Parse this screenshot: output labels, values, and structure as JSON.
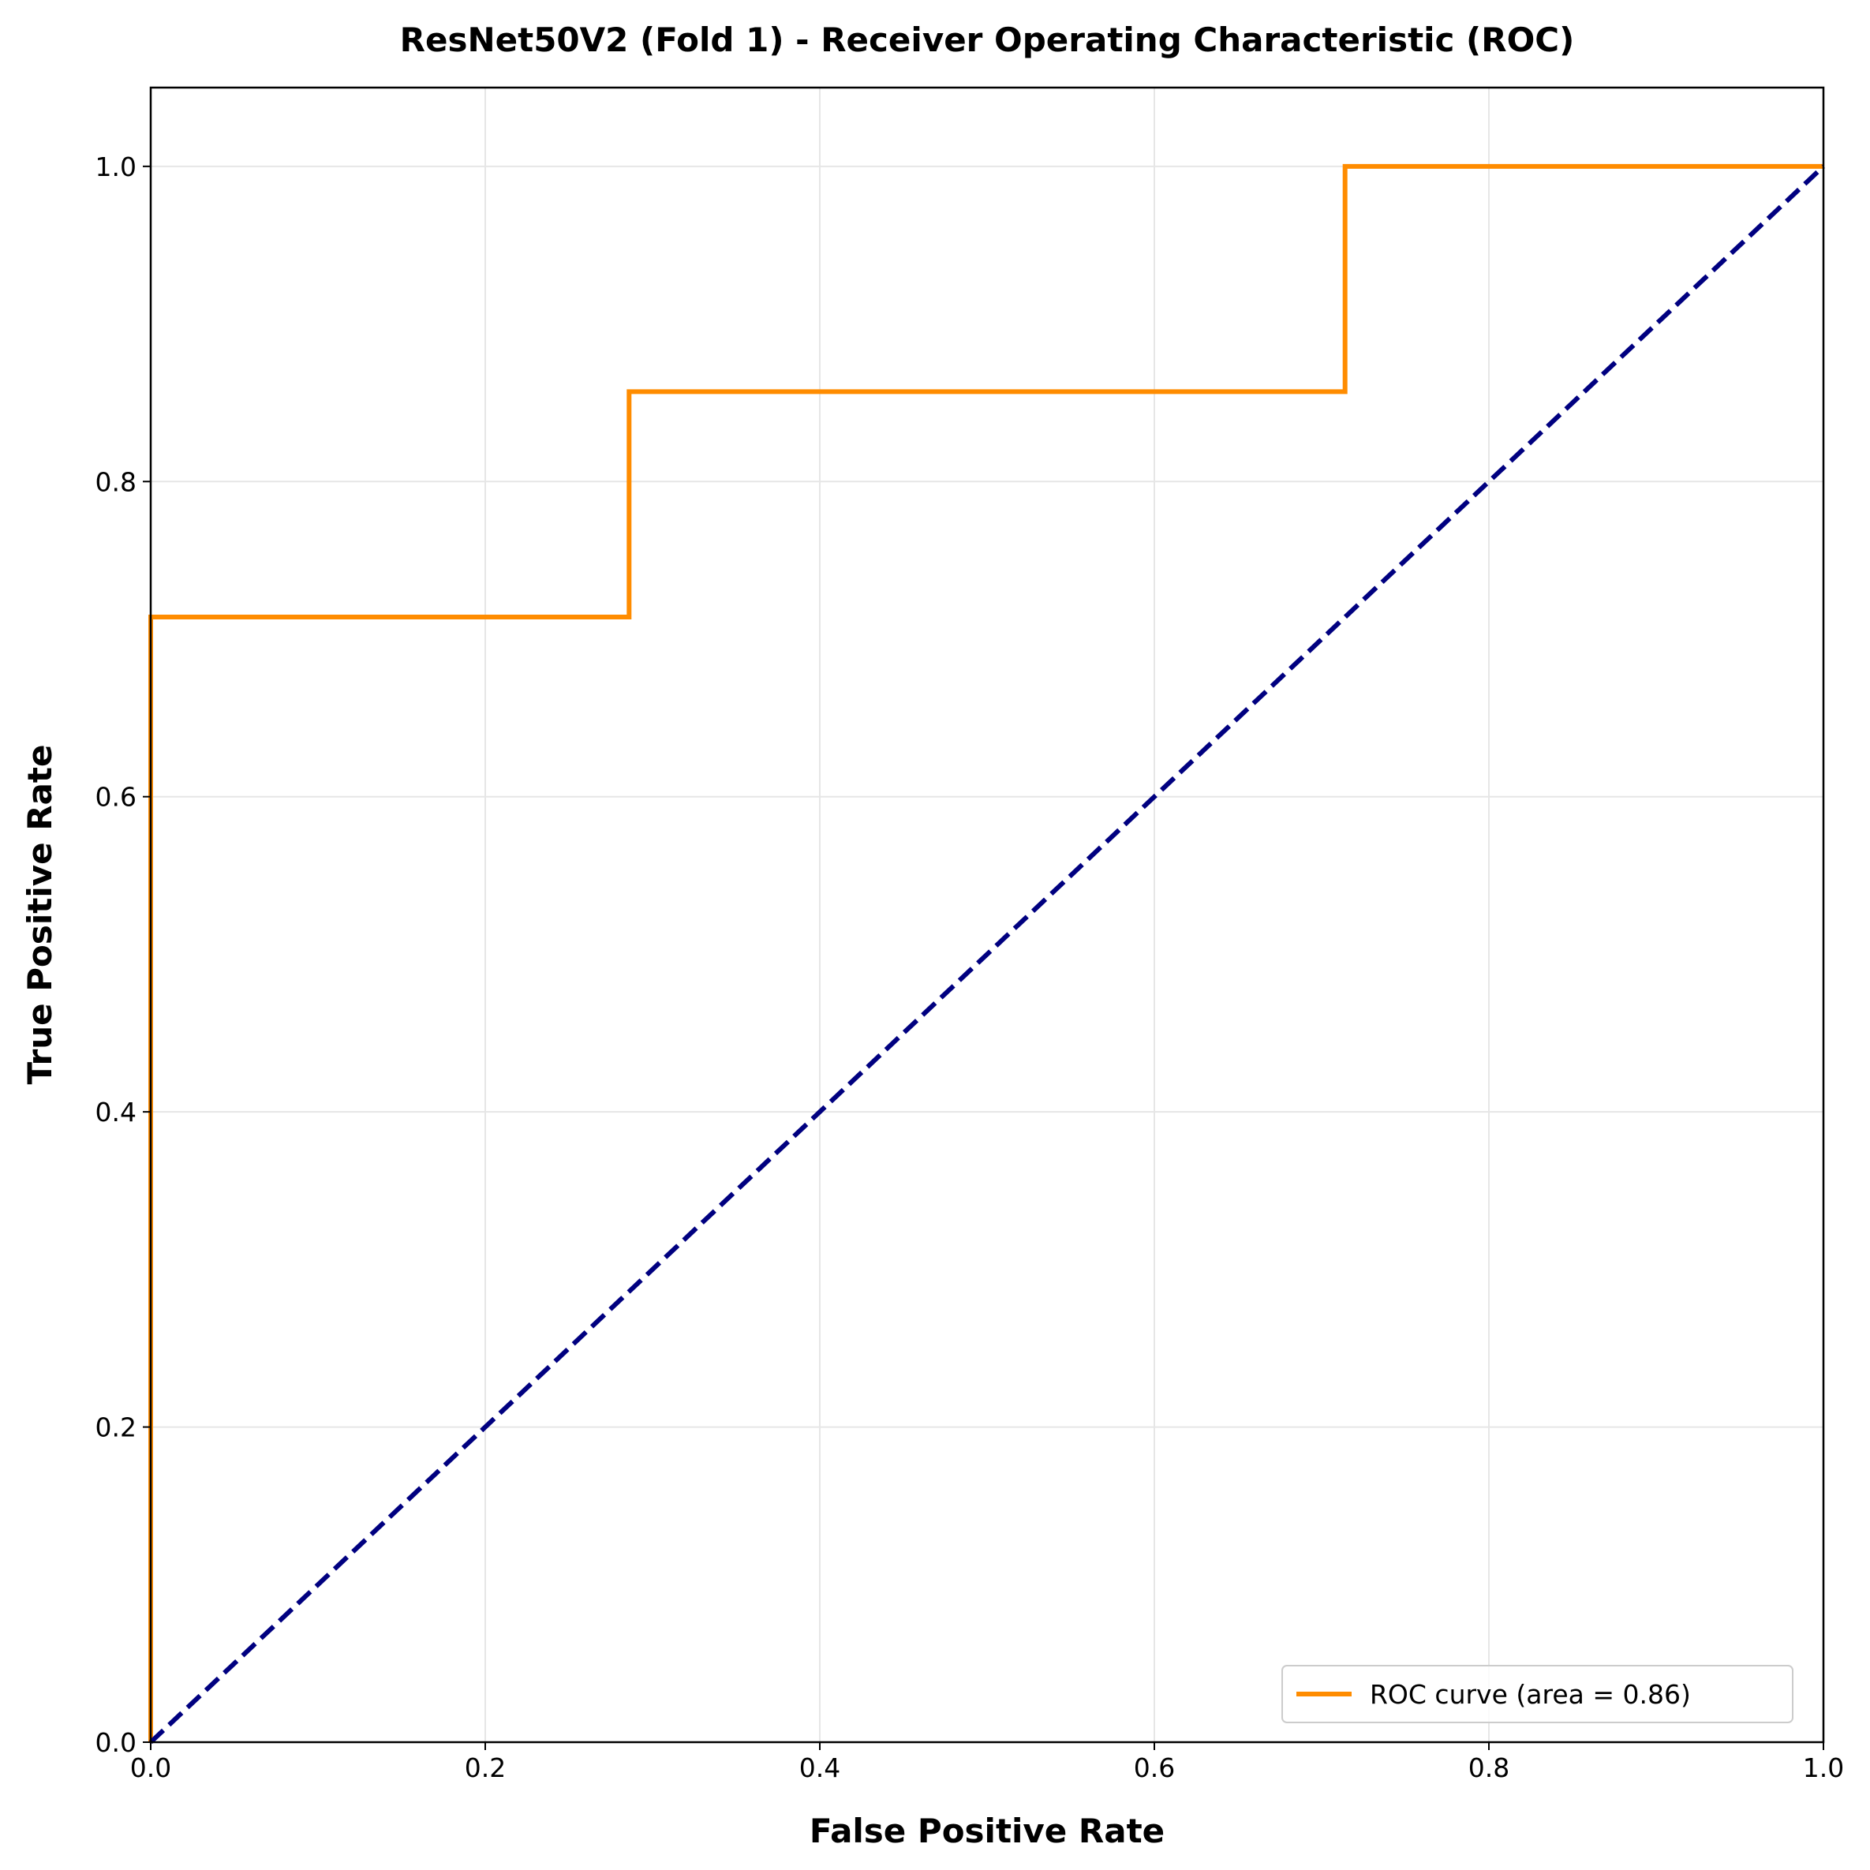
{
  "chart_data": {
    "type": "line",
    "title": "ResNet50V2 (Fold 1) - Receiver Operating Characteristic (ROC)",
    "xlabel": "False Positive Rate",
    "ylabel": "True Positive Rate",
    "xlim": [
      0.0,
      1.0
    ],
    "ylim": [
      0.0,
      1.05
    ],
    "xticks": [
      0.0,
      0.2,
      0.4,
      0.6,
      0.8,
      1.0
    ],
    "yticks": [
      0.0,
      0.2,
      0.4,
      0.6,
      0.8,
      1.0
    ],
    "xtick_labels": [
      "0.0",
      "0.2",
      "0.4",
      "0.6",
      "0.8",
      "1.0"
    ],
    "ytick_labels": [
      "0.0",
      "0.2",
      "0.4",
      "0.6",
      "0.8",
      "1.0"
    ],
    "grid": true,
    "legend_position": "lower-right",
    "series": [
      {
        "name": "ROC curve (area = 0.86)",
        "color": "#ff8c00",
        "style": "solid",
        "x": [
          0.0,
          0.0,
          0.286,
          0.286,
          0.714,
          0.714,
          1.0
        ],
        "y": [
          0.0,
          0.714,
          0.714,
          0.857,
          0.857,
          1.0,
          1.0
        ]
      },
      {
        "color": "#000080",
        "style": "dashed",
        "x": [
          0.0,
          1.0
        ],
        "y": [
          0.0,
          1.0
        ]
      }
    ]
  }
}
